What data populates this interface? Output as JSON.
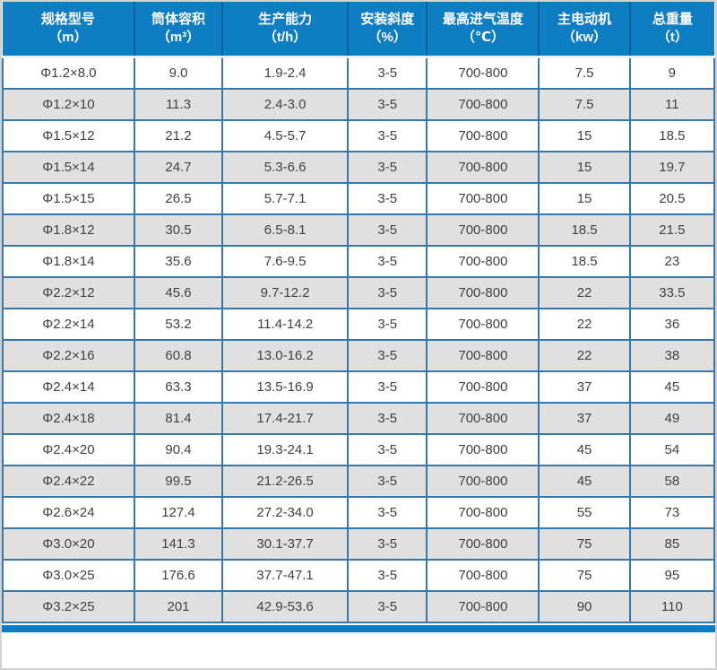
{
  "chart_data": {
    "type": "table",
    "columns": [
      {
        "label": "规格型号",
        "unit": "（m）"
      },
      {
        "label": "筒体容积",
        "unit": "（m³）"
      },
      {
        "label": "生产能力",
        "unit": "（t/h）"
      },
      {
        "label": "安装斜度",
        "unit": "（%）"
      },
      {
        "label": "最高进气温度",
        "unit": "（℃）"
      },
      {
        "label": "主电动机",
        "unit": "（kw）"
      },
      {
        "label": "总重量",
        "unit": "（t）"
      }
    ],
    "rows": [
      [
        "Φ1.2×8.0",
        "9.0",
        "1.9-2.4",
        "3-5",
        "700-800",
        "7.5",
        "9"
      ],
      [
        "Φ1.2×10",
        "11.3",
        "2.4-3.0",
        "3-5",
        "700-800",
        "7.5",
        "11"
      ],
      [
        "Φ1.5×12",
        "21.2",
        "4.5-5.7",
        "3-5",
        "700-800",
        "15",
        "18.5"
      ],
      [
        "Φ1.5×14",
        "24.7",
        "5.3-6.6",
        "3-5",
        "700-800",
        "15",
        "19.7"
      ],
      [
        "Φ1.5×15",
        "26.5",
        "5.7-7.1",
        "3-5",
        "700-800",
        "15",
        "20.5"
      ],
      [
        "Φ1.8×12",
        "30.5",
        "6.5-8.1",
        "3-5",
        "700-800",
        "18.5",
        "21.5"
      ],
      [
        "Φ1.8×14",
        "35.6",
        "7.6-9.5",
        "3-5",
        "700-800",
        "18.5",
        "23"
      ],
      [
        "Φ2.2×12",
        "45.6",
        "9.7-12.2",
        "3-5",
        "700-800",
        "22",
        "33.5"
      ],
      [
        "Φ2.2×14",
        "53.2",
        "11.4-14.2",
        "3-5",
        "700-800",
        "22",
        "36"
      ],
      [
        "Φ2.2×16",
        "60.8",
        "13.0-16.2",
        "3-5",
        "700-800",
        "22",
        "38"
      ],
      [
        "Φ2.4×14",
        "63.3",
        "13.5-16.9",
        "3-5",
        "700-800",
        "37",
        "45"
      ],
      [
        "Φ2.4×18",
        "81.4",
        "17.4-21.7",
        "3-5",
        "700-800",
        "37",
        "49"
      ],
      [
        "Φ2.4×20",
        "90.4",
        "19.3-24.1",
        "3-5",
        "700-800",
        "45",
        "54"
      ],
      [
        "Φ2.4×22",
        "99.5",
        "21.2-26.5",
        "3-5",
        "700-800",
        "45",
        "58"
      ],
      [
        "Φ2.6×24",
        "127.4",
        "27.2-34.0",
        "3-5",
        "700-800",
        "55",
        "73"
      ],
      [
        "Φ3.0×20",
        "141.3",
        "30.1-37.7",
        "3-5",
        "700-800",
        "75",
        "85"
      ],
      [
        "Φ3.0×25",
        "176.6",
        "37.7-47.1",
        "3-5",
        "700-800",
        "75",
        "95"
      ],
      [
        "Φ3.2×25",
        "201",
        "42.9-53.6",
        "3-5",
        "700-800",
        "90",
        "110"
      ]
    ]
  },
  "colors": {
    "header_bg": "#0e7dc2",
    "header_divider": "#0a5f9b",
    "row_border": "#3578a9",
    "row_alt_bg": "#e0e0e0",
    "row_bg": "#ffffff",
    "cell_text": "#404040",
    "header_text": "#ffffff",
    "outer_border": "#d2d2d2",
    "footer_bg": "#0e7dc2"
  }
}
